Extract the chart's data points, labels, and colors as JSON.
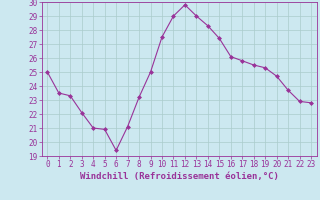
{
  "x": [
    0,
    1,
    2,
    3,
    4,
    5,
    6,
    7,
    8,
    9,
    10,
    11,
    12,
    13,
    14,
    15,
    16,
    17,
    18,
    19,
    20,
    21,
    22,
    23
  ],
  "y": [
    25,
    23.5,
    23.3,
    22.1,
    21.0,
    20.9,
    19.4,
    21.1,
    23.2,
    25.0,
    27.5,
    29.0,
    29.8,
    29.0,
    28.3,
    27.4,
    26.1,
    25.8,
    25.5,
    25.3,
    24.7,
    23.7,
    22.9,
    22.8
  ],
  "line_color": "#993399",
  "marker": "D",
  "markersize": 2.0,
  "bg_color": "#cce8f0",
  "grid_color": "#aacccc",
  "xlabel": "Windchill (Refroidissement éolien,°C)",
  "ylim": [
    19,
    30
  ],
  "xlim": [
    -0.5,
    23.5
  ],
  "yticks": [
    19,
    20,
    21,
    22,
    23,
    24,
    25,
    26,
    27,
    28,
    29,
    30
  ],
  "xticks": [
    0,
    1,
    2,
    3,
    4,
    5,
    6,
    7,
    8,
    9,
    10,
    11,
    12,
    13,
    14,
    15,
    16,
    17,
    18,
    19,
    20,
    21,
    22,
    23
  ],
  "tick_color": "#993399",
  "label_fontsize": 6.5,
  "tick_fontsize": 5.5
}
